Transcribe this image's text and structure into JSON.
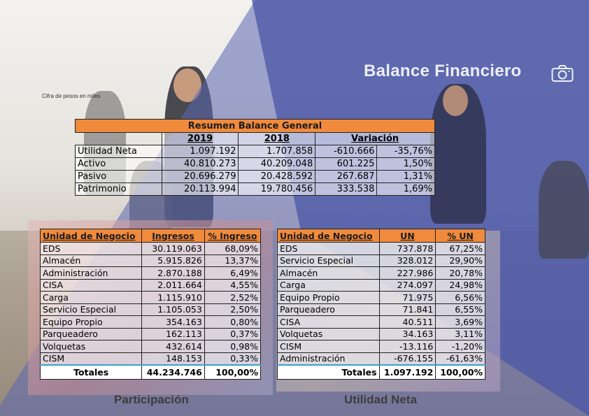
{
  "header": {
    "title": "Balance Financiero",
    "note": "Cifra de pesos en miles"
  },
  "balance": {
    "title": "Resumen Balance General",
    "years": [
      "2019",
      "2018"
    ],
    "variation_label": "Variación",
    "rows": [
      {
        "label": "Utilidad Neta",
        "y2019": "1.097.192",
        "y2018": "1.707.858",
        "var": "-610.666",
        "pct": "-35,76%"
      },
      {
        "label": "Activo",
        "y2019": "40.810.273",
        "y2018": "40.209.048",
        "var": "601.225",
        "pct": "1,50%"
      },
      {
        "label": "Pasivo",
        "y2019": "20.696.279",
        "y2018": "20.428.592",
        "var": "267.687",
        "pct": "1,31%"
      },
      {
        "label": "Patrimonio",
        "y2019": "20.113.994",
        "y2018": "19.780.456",
        "var": "333.538",
        "pct": "1,69%"
      }
    ]
  },
  "participacion": {
    "caption": "Participación",
    "headers": [
      "Unidad de Negocio",
      "Ingresos",
      "% Ingreso"
    ],
    "rows": [
      [
        "EDS",
        "30.119.063",
        "68,09%"
      ],
      [
        "Almacén",
        "5.915.826",
        "13,37%"
      ],
      [
        "Administración",
        "2.870.188",
        "6,49%"
      ],
      [
        "CISA",
        "2.011.664",
        "4,55%"
      ],
      [
        "Carga",
        "1.115.910",
        "2,52%"
      ],
      [
        "Servicio Especial",
        "1.105.053",
        "2,50%"
      ],
      [
        "Equipo Propio",
        "354.163",
        "0,80%"
      ],
      [
        "Parqueadero",
        "162.113",
        "0,37%"
      ],
      [
        "Volquetas",
        "432.614",
        "0,98%"
      ],
      [
        "CISM",
        "148.153",
        "0,33%"
      ]
    ],
    "total": [
      "Totales",
      "44.234.746",
      "100,00%"
    ]
  },
  "utilidad": {
    "caption": "Utilidad Neta",
    "headers": [
      "Unidad de Negocio",
      "UN",
      "% UN"
    ],
    "rows": [
      [
        "EDS",
        "737.878",
        "67,25%"
      ],
      [
        "Servicio Especial",
        "328.012",
        "29,90%"
      ],
      [
        "Almacén",
        "227.986",
        "20,78%"
      ],
      [
        "Carga",
        "274.097",
        "24,98%"
      ],
      [
        "Equipo Propio",
        "71.975",
        "6,56%"
      ],
      [
        "Parqueadero",
        "71.841",
        "6,55%"
      ],
      [
        "CISA",
        "40.511",
        "3,69%"
      ],
      [
        "Volquetas",
        "34.163",
        "3,11%"
      ],
      [
        "CISM",
        "-13.116",
        "-1,20%"
      ],
      [
        "Administración",
        "-676.155",
        "-61,63%"
      ]
    ],
    "total": [
      "Totales",
      "1.097.192",
      "100,00%"
    ]
  },
  "colors": {
    "accent": "#f08a3c",
    "overlay": "#4d59a6"
  },
  "icons": {
    "title": "camera-icon"
  }
}
